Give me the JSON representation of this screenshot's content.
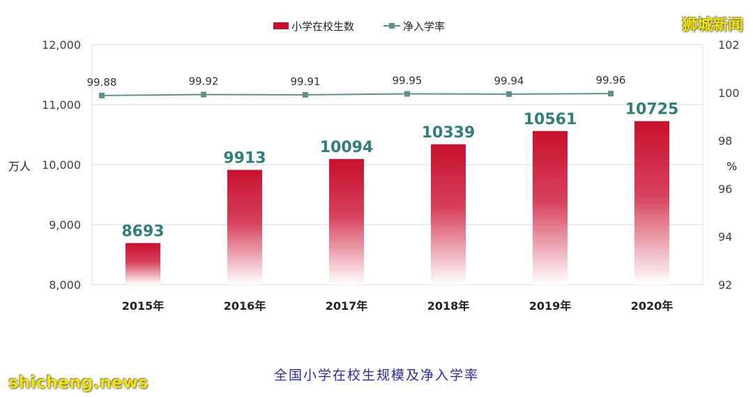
{
  "chart_data": {
    "type": "bar+line",
    "categories": [
      "2015年",
      "2016年",
      "2017年",
      "2018年",
      "2019年",
      "2020年"
    ],
    "series": [
      {
        "name": "小学在校生数",
        "type": "bar",
        "axis": "left",
        "values": [
          8693,
          9913,
          10094,
          10339,
          10561,
          10725
        ],
        "color": "#c8102e"
      },
      {
        "name": "净入学率",
        "type": "line",
        "axis": "right",
        "values": [
          99.88,
          99.92,
          99.91,
          99.95,
          99.94,
          99.96
        ],
        "color": "#5f8f8a"
      }
    ],
    "left_axis": {
      "label": "万人",
      "ylim": [
        8000,
        12000
      ],
      "ticks": [
        "8,000",
        "9,000",
        "10,000",
        "11,000",
        "12,000"
      ]
    },
    "right_axis": {
      "label": "%",
      "ylim": [
        92,
        102
      ],
      "ticks": [
        "92",
        "94",
        "96",
        "98",
        "100",
        "102"
      ]
    },
    "grid": true,
    "legend_position": "top-center"
  },
  "caption": "全国小学在校生规模及净入学率",
  "watermarks": {
    "top_right": "狮城新闻",
    "bottom_left": "shicheng.news"
  },
  "colors": {
    "bar": "#c8102e",
    "line": "#5f8f8a",
    "bar_label": "#2f7f7a",
    "caption": "#2a2aa8",
    "watermark": "#f2e600"
  }
}
